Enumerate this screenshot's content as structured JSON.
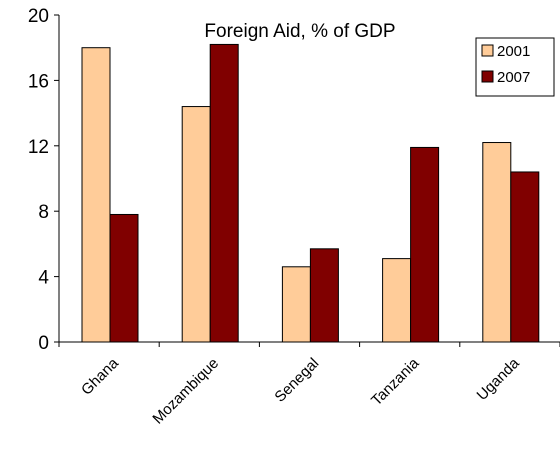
{
  "chart_data": {
    "type": "bar",
    "title": "Foreign Aid, % of GDP",
    "categories": [
      "Ghana",
      "Mozambique",
      "Senegal",
      "Tanzania",
      "Uganda"
    ],
    "series": [
      {
        "name": "2001",
        "values": [
          18.0,
          14.4,
          4.6,
          5.1,
          12.2
        ],
        "color": "#FFCC99"
      },
      {
        "name": "2007",
        "values": [
          7.8,
          18.2,
          5.7,
          11.9,
          10.4
        ],
        "color": "#800000"
      }
    ],
    "ylim": [
      0,
      20
    ],
    "yticks": [
      0,
      4,
      8,
      12,
      16,
      20
    ],
    "xlabel": "",
    "ylabel": "",
    "grid": false,
    "legend_position": "top-right"
  }
}
